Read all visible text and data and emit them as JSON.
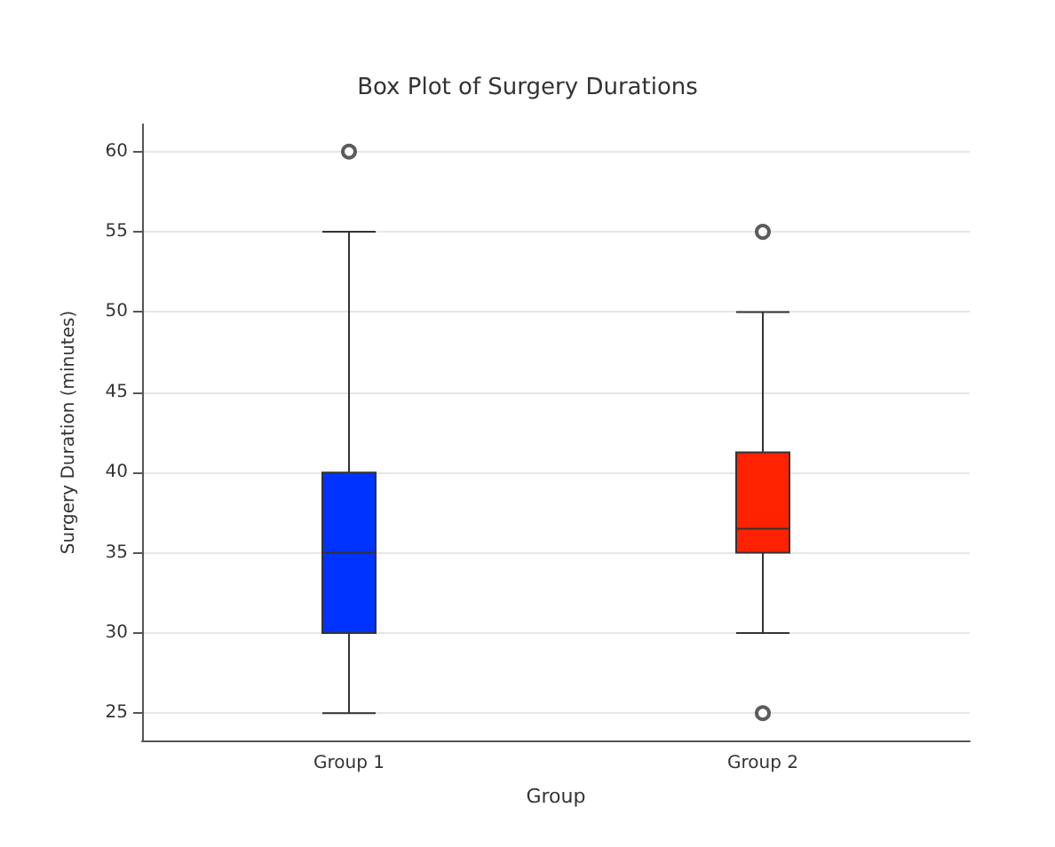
{
  "chart_data": {
    "type": "box",
    "title": "Box Plot of Surgery Durations",
    "xlabel": "Group",
    "ylabel": "Surgery Duration (minutes)",
    "categories": [
      "Group 1",
      "Group 2"
    ],
    "colors": [
      "#0033ff",
      "#ff2200"
    ],
    "boxes": [
      {
        "low": 25,
        "q1": 30,
        "median": 35,
        "q3": 40,
        "high": 55,
        "outliers": [
          60
        ]
      },
      {
        "low": 30,
        "q1": 35,
        "median": 36.5,
        "q3": 41.25,
        "high": 50,
        "outliers": [
          55,
          25
        ]
      }
    ],
    "ylim": [
      23.3,
      61.7
    ],
    "yticks": [
      25,
      30,
      35,
      40,
      45,
      50,
      55,
      60
    ],
    "grid": "y"
  }
}
